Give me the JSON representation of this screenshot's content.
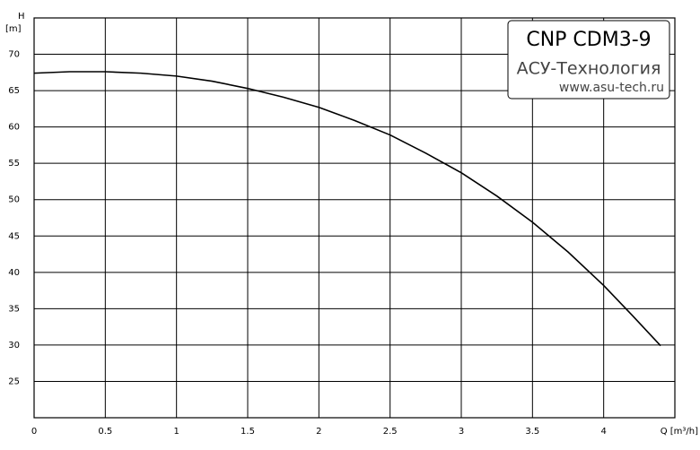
{
  "chart_data": {
    "type": "line",
    "x_label": "Q [m³/h]",
    "y_label": "H",
    "y_unit": "[m]",
    "annotations": [
      "CNP CDM3-9",
      "АСУ-Технология",
      "www.asu-tech.ru"
    ],
    "x": [
      0,
      0.25,
      0.5,
      0.75,
      1,
      1.25,
      1.5,
      1.75,
      2,
      2.25,
      2.5,
      2.75,
      3,
      3.25,
      3.5,
      3.75,
      4,
      4.2,
      4.4
    ],
    "series": [
      {
        "name": "H",
        "color": "#000000",
        "values": [
          67.4,
          67.6,
          67.6,
          67.4,
          67.0,
          66.3,
          65.3,
          64.1,
          62.7,
          60.9,
          58.9,
          56.4,
          53.7,
          50.5,
          46.9,
          42.8,
          38.2,
          34.1,
          29.9
        ]
      }
    ],
    "xlim": [
      0,
      4.5
    ],
    "xticks": [
      0,
      0.5,
      1,
      1.5,
      2,
      2.5,
      3,
      3.5,
      4
    ],
    "ylim": [
      20,
      75
    ],
    "yticks": [
      25,
      30,
      35,
      40,
      45,
      50,
      55,
      60,
      65,
      70
    ],
    "grid": true
  }
}
